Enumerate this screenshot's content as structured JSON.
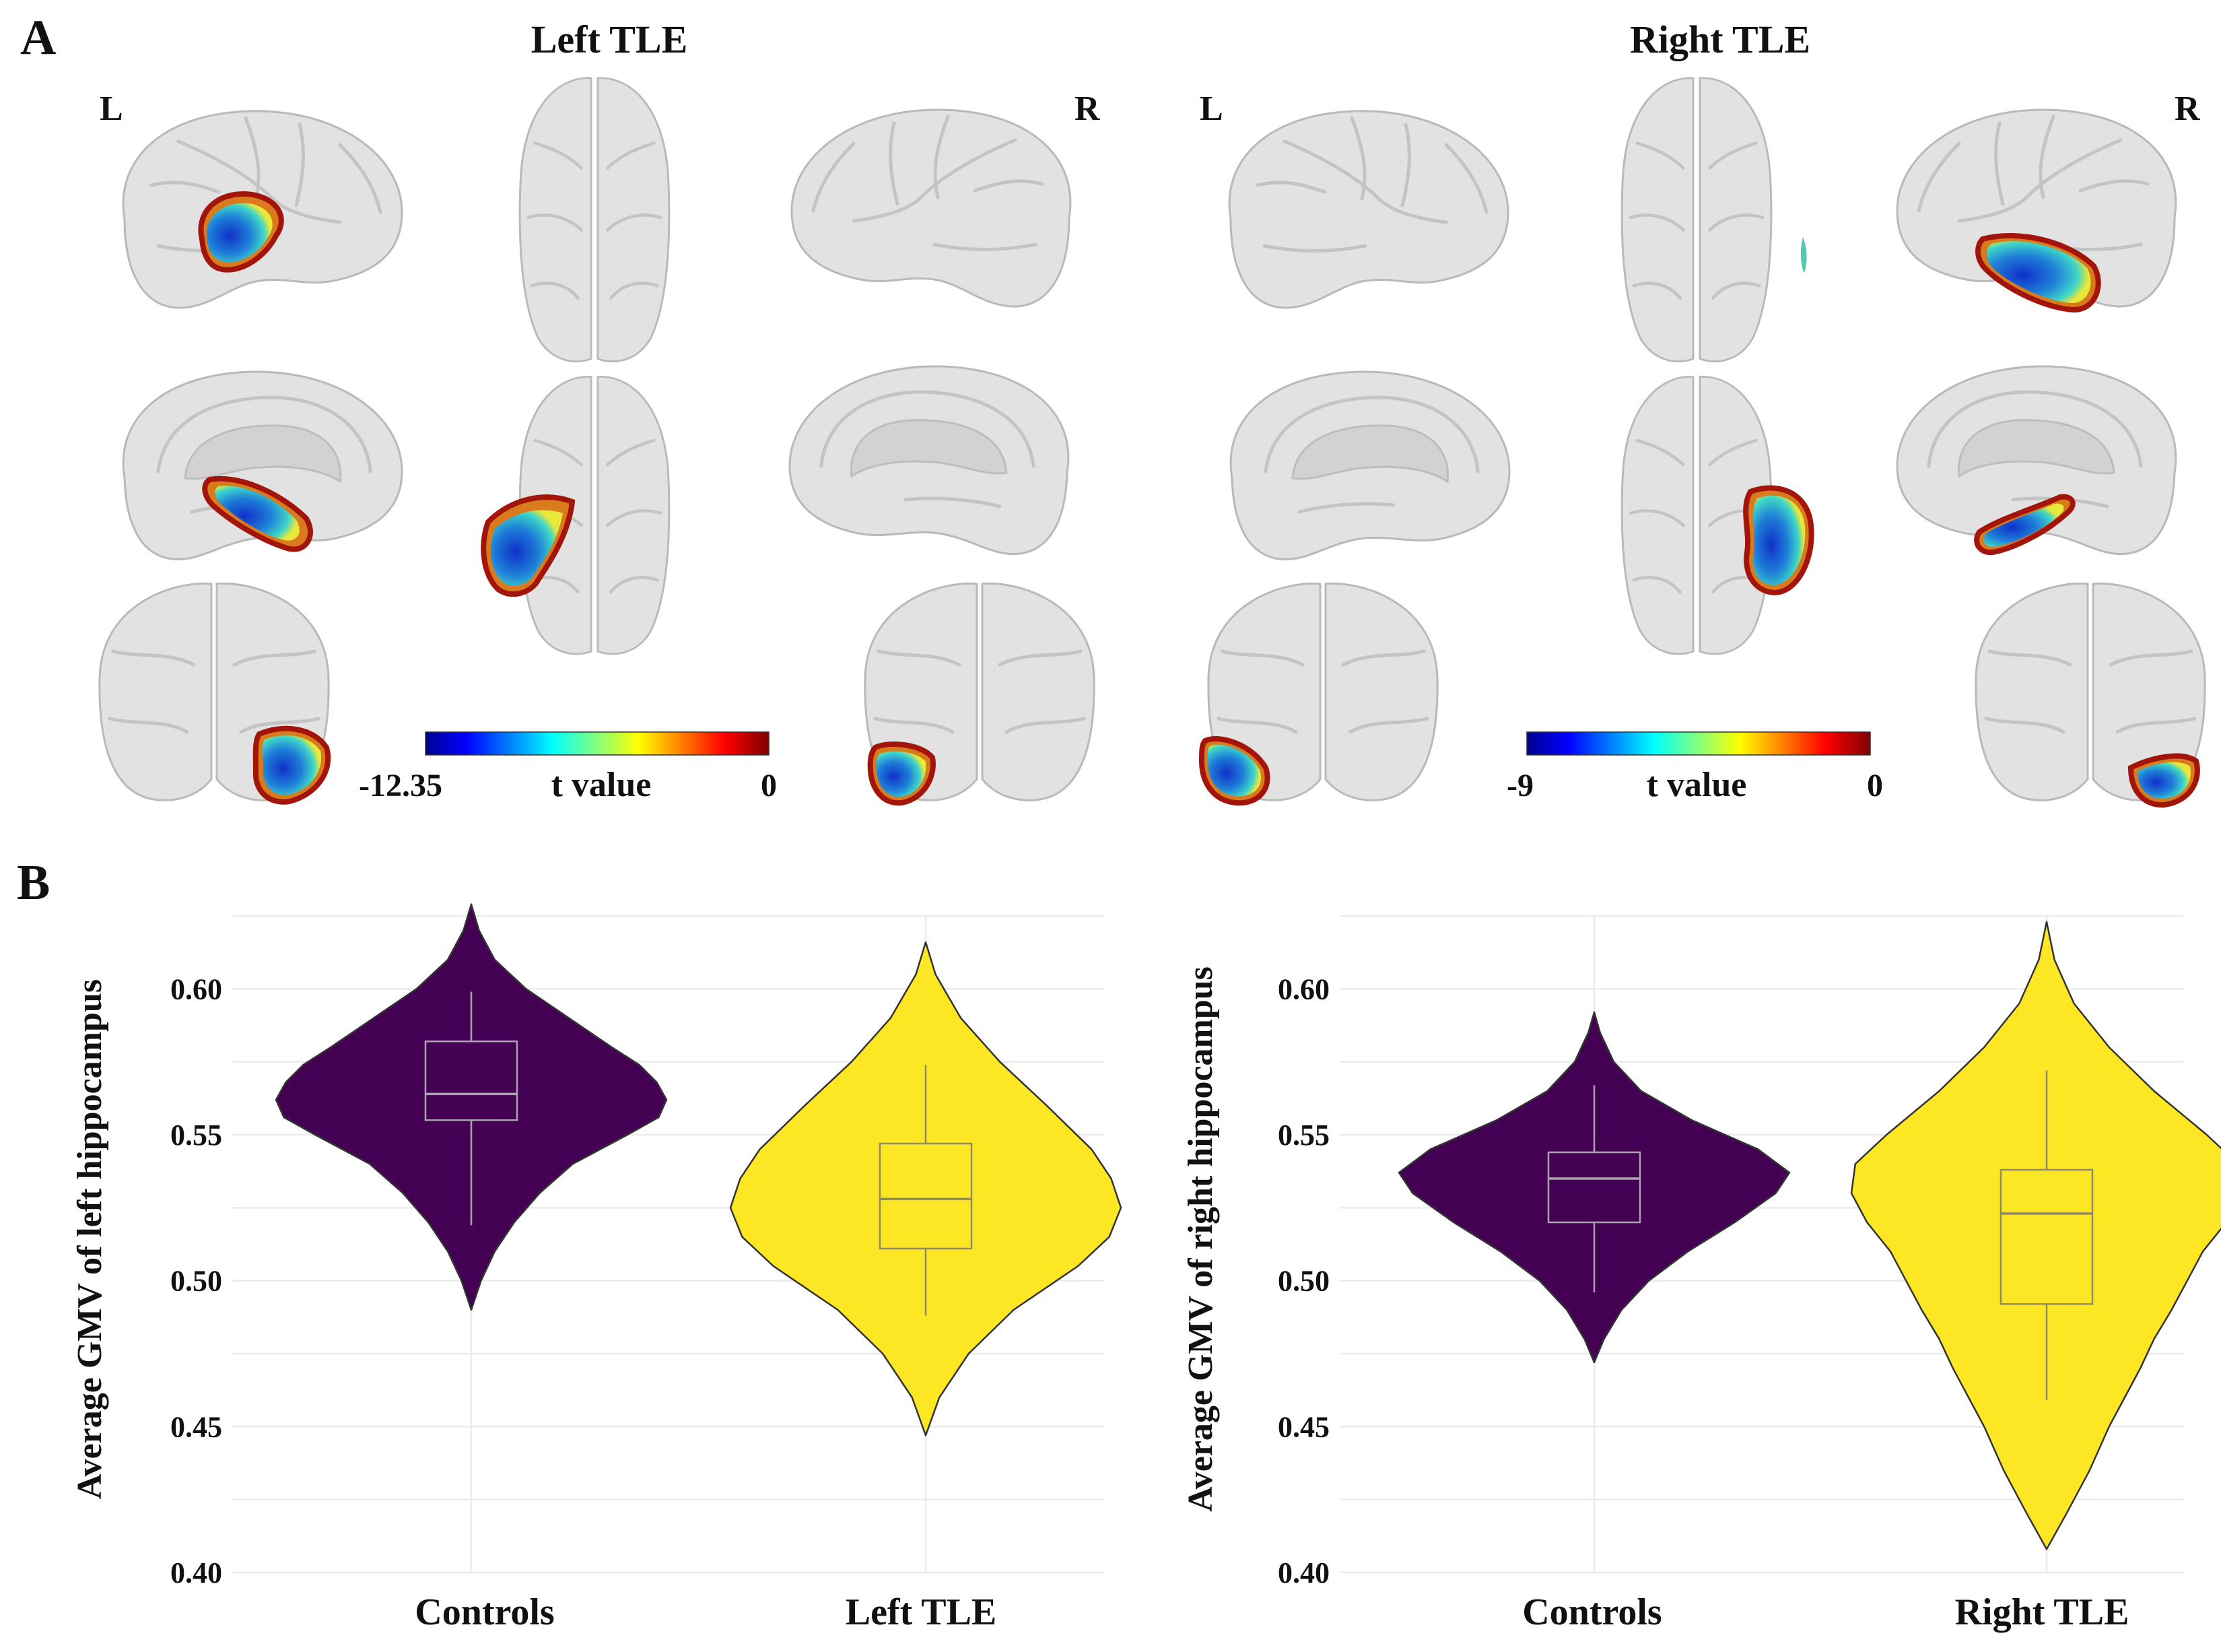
{
  "figure": {
    "panel_a_label": "A",
    "panel_b_label": "B",
    "left_map": {
      "title": "Left TLE",
      "hemi_left": "L",
      "hemi_right": "R",
      "colorbar": {
        "min_label": "-12.35",
        "max_label": "0",
        "label": "t value"
      }
    },
    "right_map": {
      "title": "Right TLE",
      "hemi_left": "L",
      "hemi_right": "R",
      "colorbar": {
        "min_label": "-9",
        "max_label": "0",
        "label": "t value"
      }
    },
    "colors": {
      "controls_fill": "#440154",
      "patients_fill": "#fde725",
      "controls_box": "#a9a3ae",
      "patients_box": "#8e8a6c"
    }
  },
  "chart_data": [
    {
      "type": "violin",
      "ylabel": "Average GMV of left hippocampus",
      "categories": [
        "Controls",
        "Left TLE"
      ],
      "ylim": [
        0.4,
        0.625
      ],
      "yticks": [
        0.4,
        0.45,
        0.5,
        0.55,
        0.6
      ],
      "ytick_labels": [
        "0.40",
        "0.45",
        "0.50",
        "0.55",
        "0.60"
      ],
      "grid": true,
      "groups": [
        {
          "name": "Controls",
          "violin_min": 0.49,
          "violin_max": 0.629,
          "density_y": [
            0.49,
            0.5,
            0.51,
            0.52,
            0.53,
            0.54,
            0.55,
            0.556,
            0.562,
            0.568,
            0.574,
            0.58,
            0.59,
            0.6,
            0.61,
            0.62,
            0.629
          ],
          "density_w": [
            0.0,
            0.05,
            0.12,
            0.22,
            0.35,
            0.52,
            0.8,
            0.96,
            1.0,
            0.95,
            0.86,
            0.72,
            0.5,
            0.28,
            0.12,
            0.04,
            0.0
          ],
          "whisker_low": 0.519,
          "q1": 0.555,
          "median": 0.564,
          "q3": 0.582,
          "whisker_high": 0.599
        },
        {
          "name": "Left TLE",
          "violin_min": 0.447,
          "violin_max": 0.616,
          "density_y": [
            0.447,
            0.46,
            0.475,
            0.49,
            0.505,
            0.515,
            0.525,
            0.535,
            0.545,
            0.56,
            0.575,
            0.59,
            0.605,
            0.616
          ],
          "density_w": [
            0.0,
            0.07,
            0.22,
            0.45,
            0.78,
            0.94,
            1.0,
            0.95,
            0.85,
            0.62,
            0.38,
            0.18,
            0.05,
            0.0
          ],
          "whisker_low": 0.488,
          "q1": 0.511,
          "median": 0.528,
          "q3": 0.547,
          "whisker_high": 0.574
        }
      ]
    },
    {
      "type": "violin",
      "ylabel": "Average GMV of right hippocampus",
      "categories": [
        "Controls",
        "Right TLE"
      ],
      "ylim": [
        0.4,
        0.625
      ],
      "yticks": [
        0.4,
        0.45,
        0.5,
        0.55,
        0.6
      ],
      "ytick_labels": [
        "0.40",
        "0.45",
        "0.50",
        "0.55",
        "0.60"
      ],
      "grid": true,
      "groups": [
        {
          "name": "Controls",
          "violin_min": 0.472,
          "violin_max": 0.592,
          "density_y": [
            0.472,
            0.48,
            0.49,
            0.5,
            0.51,
            0.52,
            0.53,
            0.537,
            0.545,
            0.555,
            0.565,
            0.575,
            0.585,
            0.592
          ],
          "density_w": [
            0.0,
            0.05,
            0.14,
            0.28,
            0.48,
            0.72,
            0.93,
            1.0,
            0.84,
            0.5,
            0.24,
            0.1,
            0.03,
            0.0
          ],
          "whisker_low": 0.496,
          "q1": 0.52,
          "median": 0.535,
          "q3": 0.544,
          "whisker_high": 0.567
        },
        {
          "name": "Right TLE",
          "violin_min": 0.408,
          "violin_max": 0.623,
          "density_y": [
            0.408,
            0.42,
            0.435,
            0.45,
            0.46,
            0.47,
            0.48,
            0.49,
            0.5,
            0.51,
            0.52,
            0.53,
            0.54,
            0.55,
            0.565,
            0.58,
            0.595,
            0.61,
            0.623
          ],
          "density_w": [
            0.0,
            0.1,
            0.22,
            0.32,
            0.4,
            0.48,
            0.55,
            0.64,
            0.72,
            0.8,
            0.92,
            1.0,
            0.98,
            0.82,
            0.55,
            0.32,
            0.14,
            0.04,
            0.0
          ],
          "whisker_low": 0.459,
          "q1": 0.492,
          "median": 0.523,
          "q3": 0.538,
          "whisker_high": 0.572
        }
      ]
    }
  ]
}
